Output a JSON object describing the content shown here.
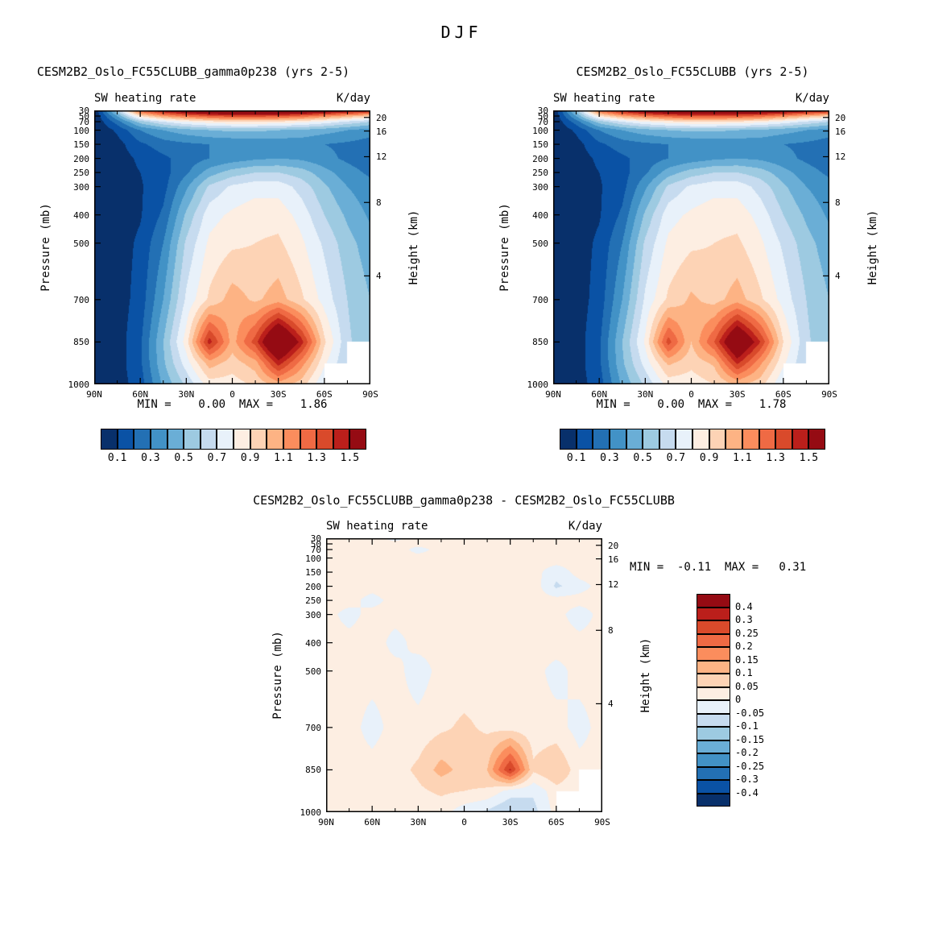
{
  "figure": {
    "title": "DJF"
  },
  "palette_blue_to_red": [
    "#08306b",
    "#0a52a5",
    "#2370b4",
    "#4292c6",
    "#6aaed6",
    "#9dcae1",
    "#c6dbef",
    "#e8f1fa",
    "#fdeee2",
    "#fdd3b5",
    "#fdb384",
    "#fb8d5d",
    "#ef6a44",
    "#d94a2b",
    "#bb1f1b",
    "#950b13"
  ],
  "chart_data": [
    {
      "type": "heatmap",
      "title": "CESM2B2_Oslo_FC55CLUBB_gamma0p238 (yrs 2-5)",
      "subtitle_left": "SW heating rate",
      "units": "K/day",
      "ylabel": "Pressure (mb)",
      "ylabel_right": "Height (km)",
      "stats_text": "MIN =    0.00  MAX =    1.86",
      "min": "0.00",
      "max": "1.86",
      "x_ticks": [
        {
          "label": "90N",
          "lat": 90
        },
        {
          "label": "60N",
          "lat": 60
        },
        {
          "label": "30N",
          "lat": 30
        },
        {
          "label": "0",
          "lat": 0
        },
        {
          "label": "30S",
          "lat": -30
        },
        {
          "label": "60S",
          "lat": -60
        },
        {
          "label": "90S",
          "lat": -90
        }
      ],
      "x_minor": [
        75,
        45,
        15,
        -15,
        -45,
        -75
      ],
      "pressure_ticks": [
        30,
        50,
        70,
        100,
        150,
        200,
        250,
        300,
        400,
        500,
        700,
        850,
        1000
      ],
      "height_ticks": [
        {
          "label": "20",
          "p": 55
        },
        {
          "label": "16",
          "p": 103
        },
        {
          "label": "12",
          "p": 194
        },
        {
          "label": "8",
          "p": 356
        },
        {
          "label": "4",
          "p": 616
        }
      ],
      "levels": [
        0.1,
        0.2,
        0.3,
        0.4,
        0.5,
        0.6,
        0.7,
        0.8,
        0.9,
        1.0,
        1.1,
        1.2,
        1.3,
        1.4,
        1.5
      ],
      "colorbar_labels": [
        "0.1",
        "0.3",
        "0.5",
        "0.7",
        "0.9",
        "1.1",
        "1.3",
        "1.5"
      ],
      "lats": [
        90,
        75,
        60,
        45,
        30,
        15,
        0,
        -15,
        -30,
        -45,
        -60,
        -75,
        -90
      ],
      "pressures": [
        30,
        50,
        70,
        100,
        150,
        200,
        250,
        300,
        400,
        500,
        700,
        850,
        925,
        1000
      ],
      "values": [
        [
          0.0,
          0.6,
          1.3,
          1.55,
          1.7,
          1.8,
          1.86,
          1.85,
          1.83,
          1.78,
          1.7,
          1.6,
          1.5
        ],
        [
          0.0,
          0.4,
          0.9,
          1.1,
          1.22,
          1.3,
          1.35,
          1.34,
          1.32,
          1.26,
          1.16,
          1.05,
          0.95
        ],
        [
          0.0,
          0.25,
          0.55,
          0.7,
          0.8,
          0.86,
          0.9,
          0.9,
          0.88,
          0.84,
          0.77,
          0.68,
          0.6
        ],
        [
          0.0,
          0.12,
          0.3,
          0.4,
          0.46,
          0.5,
          0.52,
          0.52,
          0.5,
          0.48,
          0.44,
          0.4,
          0.35
        ],
        [
          0.0,
          0.06,
          0.18,
          0.25,
          0.28,
          0.3,
          0.31,
          0.32,
          0.33,
          0.33,
          0.3,
          0.28,
          0.25
        ],
        [
          0.0,
          0.05,
          0.12,
          0.18,
          0.24,
          0.3,
          0.34,
          0.38,
          0.4,
          0.38,
          0.33,
          0.28,
          0.24
        ],
        [
          0.0,
          0.05,
          0.1,
          0.16,
          0.28,
          0.45,
          0.55,
          0.6,
          0.6,
          0.55,
          0.44,
          0.34,
          0.28
        ],
        [
          0.0,
          0.05,
          0.09,
          0.16,
          0.38,
          0.62,
          0.72,
          0.76,
          0.76,
          0.66,
          0.52,
          0.4,
          0.33
        ],
        [
          0.0,
          0.05,
          0.09,
          0.22,
          0.52,
          0.76,
          0.82,
          0.86,
          0.86,
          0.76,
          0.6,
          0.48,
          0.38
        ],
        [
          0.0,
          0.05,
          0.12,
          0.3,
          0.62,
          0.82,
          0.88,
          0.9,
          0.92,
          0.82,
          0.68,
          0.54,
          0.44
        ],
        [
          0.0,
          0.05,
          0.14,
          0.4,
          0.72,
          0.92,
          1.05,
          0.98,
          1.05,
          0.92,
          0.76,
          0.6,
          0.5
        ],
        [
          0.0,
          0.05,
          0.18,
          0.5,
          0.85,
          1.45,
          1.05,
          1.35,
          1.86,
          1.45,
          0.92,
          0.62,
          0.52
        ],
        [
          0.0,
          0.05,
          0.18,
          0.48,
          0.75,
          1.05,
          0.95,
          1.05,
          1.45,
          1.15,
          0.82,
          0.6,
          null
        ],
        [
          0.0,
          0.05,
          0.15,
          0.42,
          0.62,
          0.85,
          0.85,
          0.92,
          1.05,
          0.95,
          0.7,
          null,
          null
        ]
      ]
    },
    {
      "type": "heatmap",
      "title": "CESM2B2_Oslo_FC55CLUBB (yrs 2-5)",
      "subtitle_left": "SW heating rate",
      "units": "K/day",
      "ylabel": "Pressure (mb)",
      "ylabel_right": "Height (km)",
      "stats_text": "MIN =    0.00  MAX =    1.78",
      "min": "0.00",
      "max": "1.78",
      "x_ticks": [
        {
          "label": "90N",
          "lat": 90
        },
        {
          "label": "60N",
          "lat": 60
        },
        {
          "label": "30N",
          "lat": 30
        },
        {
          "label": "0",
          "lat": 0
        },
        {
          "label": "30S",
          "lat": -30
        },
        {
          "label": "60S",
          "lat": -60
        },
        {
          "label": "90S",
          "lat": -90
        }
      ],
      "x_minor": [
        75,
        45,
        15,
        -15,
        -45,
        -75
      ],
      "pressure_ticks": [
        30,
        50,
        70,
        100,
        150,
        200,
        250,
        300,
        400,
        500,
        700,
        850,
        1000
      ],
      "height_ticks": [
        {
          "label": "20",
          "p": 55
        },
        {
          "label": "16",
          "p": 103
        },
        {
          "label": "12",
          "p": 194
        },
        {
          "label": "8",
          "p": 356
        },
        {
          "label": "4",
          "p": 616
        }
      ],
      "levels": [
        0.1,
        0.2,
        0.3,
        0.4,
        0.5,
        0.6,
        0.7,
        0.8,
        0.9,
        1.0,
        1.1,
        1.2,
        1.3,
        1.4,
        1.5
      ],
      "colorbar_labels": [
        "0.1",
        "0.3",
        "0.5",
        "0.7",
        "0.9",
        "1.1",
        "1.3",
        "1.5"
      ],
      "lats": [
        90,
        75,
        60,
        45,
        30,
        15,
        0,
        -15,
        -30,
        -45,
        -60,
        -75,
        -90
      ],
      "pressures": [
        30,
        50,
        70,
        100,
        150,
        200,
        250,
        300,
        400,
        500,
        700,
        850,
        925,
        1000
      ],
      "values": [
        [
          0.0,
          0.55,
          1.25,
          1.52,
          1.68,
          1.76,
          1.78,
          1.78,
          1.77,
          1.74,
          1.68,
          1.58,
          1.48
        ],
        [
          0.0,
          0.4,
          0.88,
          1.08,
          1.2,
          1.28,
          1.33,
          1.32,
          1.3,
          1.25,
          1.15,
          1.04,
          0.94
        ],
        [
          0.0,
          0.25,
          0.55,
          0.7,
          0.8,
          0.86,
          0.9,
          0.9,
          0.88,
          0.84,
          0.77,
          0.68,
          0.6
        ],
        [
          0.0,
          0.12,
          0.3,
          0.4,
          0.46,
          0.5,
          0.52,
          0.52,
          0.5,
          0.48,
          0.44,
          0.4,
          0.35
        ],
        [
          0.0,
          0.06,
          0.18,
          0.25,
          0.28,
          0.3,
          0.31,
          0.32,
          0.33,
          0.33,
          0.3,
          0.28,
          0.25
        ],
        [
          0.0,
          0.05,
          0.12,
          0.18,
          0.24,
          0.3,
          0.34,
          0.38,
          0.4,
          0.38,
          0.33,
          0.28,
          0.24
        ],
        [
          0.0,
          0.05,
          0.1,
          0.16,
          0.28,
          0.45,
          0.55,
          0.6,
          0.6,
          0.55,
          0.44,
          0.34,
          0.28
        ],
        [
          0.0,
          0.05,
          0.09,
          0.16,
          0.38,
          0.62,
          0.72,
          0.76,
          0.76,
          0.66,
          0.52,
          0.4,
          0.33
        ],
        [
          0.0,
          0.05,
          0.09,
          0.22,
          0.52,
          0.76,
          0.82,
          0.86,
          0.86,
          0.76,
          0.6,
          0.48,
          0.38
        ],
        [
          0.0,
          0.05,
          0.12,
          0.3,
          0.62,
          0.82,
          0.88,
          0.9,
          0.92,
          0.82,
          0.68,
          0.54,
          0.44
        ],
        [
          0.0,
          0.05,
          0.14,
          0.4,
          0.72,
          0.92,
          1.02,
          0.96,
          1.05,
          0.92,
          0.76,
          0.6,
          0.5
        ],
        [
          0.0,
          0.05,
          0.18,
          0.5,
          0.82,
          1.35,
          1.0,
          1.3,
          1.78,
          1.4,
          0.9,
          0.62,
          0.52
        ],
        [
          0.0,
          0.05,
          0.18,
          0.48,
          0.74,
          1.02,
          0.93,
          1.02,
          1.42,
          1.12,
          0.82,
          0.6,
          null
        ],
        [
          0.0,
          0.05,
          0.15,
          0.42,
          0.62,
          0.84,
          0.84,
          0.9,
          1.02,
          0.94,
          0.7,
          null,
          null
        ]
      ]
    },
    {
      "type": "heatmap",
      "title": "CESM2B2_Oslo_FC55CLUBB_gamma0p238 - CESM2B2_Oslo_FC55CLUBB",
      "subtitle_left": "SW heating rate",
      "units": "K/day",
      "ylabel": "Pressure (mb)",
      "ylabel_right": "Height (km)",
      "stats_text": "MIN =  -0.11  MAX =   0.31",
      "min": "-0.11",
      "max": "0.31",
      "x_ticks": [
        {
          "label": "90N",
          "lat": 90
        },
        {
          "label": "60N",
          "lat": 60
        },
        {
          "label": "30N",
          "lat": 30
        },
        {
          "label": "0",
          "lat": 0
        },
        {
          "label": "30S",
          "lat": -30
        },
        {
          "label": "60S",
          "lat": -60
        },
        {
          "label": "90S",
          "lat": -90
        }
      ],
      "x_minor": [
        75,
        45,
        15,
        -15,
        -45,
        -75
      ],
      "pressure_ticks": [
        30,
        50,
        70,
        100,
        150,
        200,
        250,
        300,
        400,
        500,
        700,
        850,
        1000
      ],
      "height_ticks": [
        {
          "label": "20",
          "p": 55
        },
        {
          "label": "16",
          "p": 103
        },
        {
          "label": "12",
          "p": 194
        },
        {
          "label": "8",
          "p": 356
        },
        {
          "label": "4",
          "p": 616
        }
      ],
      "levels": [
        -0.4,
        -0.3,
        -0.25,
        -0.2,
        -0.15,
        -0.1,
        -0.05,
        0,
        0.05,
        0.1,
        0.15,
        0.2,
        0.25,
        0.3,
        0.4
      ],
      "colorbar_labels": [
        "0.4",
        "0.3",
        "0.25",
        "0.2",
        "0.15",
        "0.1",
        "0.05",
        "0",
        "-0.05",
        "-0.1",
        "-0.15",
        "-0.2",
        "-0.25",
        "-0.3",
        "-0.4"
      ],
      "lats": [
        90,
        75,
        60,
        45,
        30,
        15,
        0,
        -15,
        -30,
        -45,
        -60,
        -75,
        -90
      ],
      "pressures": [
        30,
        50,
        70,
        100,
        150,
        200,
        250,
        300,
        400,
        500,
        700,
        850,
        925,
        1000
      ],
      "values": [
        [
          0.02,
          0.03,
          0.02,
          -0.02,
          0.03,
          0.02,
          0.03,
          0.02,
          0.04,
          0.02,
          0.03,
          0.02,
          0.02
        ],
        [
          0.02,
          0.02,
          0.03,
          0.02,
          0.02,
          0.03,
          0.02,
          0.03,
          0.03,
          0.02,
          0.02,
          0.03,
          0.02
        ],
        [
          0.02,
          0.03,
          0.02,
          0.03,
          -0.02,
          0.02,
          0.03,
          0.02,
          0.02,
          0.03,
          0.02,
          0.02,
          0.02
        ],
        [
          0.02,
          0.02,
          0.03,
          0.02,
          0.02,
          0.03,
          0.02,
          0.03,
          0.02,
          0.02,
          0.03,
          0.02,
          0.02
        ],
        [
          0.02,
          0.03,
          0.02,
          0.02,
          0.03,
          0.02,
          0.03,
          0.02,
          0.03,
          0.02,
          -0.03,
          0.02,
          0.02
        ],
        [
          0.02,
          0.02,
          0.02,
          0.03,
          0.02,
          0.02,
          0.02,
          0.03,
          0.02,
          0.03,
          -0.06,
          -0.02,
          0.02
        ],
        [
          0.02,
          0.02,
          -0.02,
          0.02,
          0.03,
          0.02,
          0.03,
          0.02,
          0.03,
          0.02,
          0.02,
          0.02,
          0.02
        ],
        [
          0.02,
          -0.02,
          0.02,
          0.02,
          0.02,
          0.03,
          0.02,
          0.03,
          0.02,
          0.03,
          0.02,
          -0.03,
          0.02
        ],
        [
          0.02,
          0.02,
          0.03,
          -0.02,
          0.02,
          0.02,
          0.03,
          0.02,
          0.03,
          0.02,
          0.03,
          0.02,
          0.02
        ],
        [
          0.02,
          0.02,
          0.02,
          0.02,
          -0.03,
          0.02,
          0.02,
          0.03,
          0.02,
          0.02,
          -0.02,
          0.02,
          0.02
        ],
        [
          0.02,
          0.02,
          -0.02,
          0.02,
          0.02,
          0.04,
          0.06,
          0.04,
          0.03,
          0.02,
          0.02,
          -0.02,
          0.02
        ],
        [
          0.02,
          0.02,
          0.02,
          0.03,
          0.06,
          0.12,
          0.08,
          0.1,
          0.31,
          0.06,
          0.1,
          0.02,
          0.02
        ],
        [
          0.02,
          0.02,
          0.02,
          0.02,
          0.04,
          0.06,
          0.05,
          0.04,
          -0.02,
          -0.04,
          0.03,
          0.02,
          null
        ],
        [
          0.02,
          0.02,
          0.02,
          0.02,
          0.02,
          0.02,
          -0.03,
          -0.06,
          -0.11,
          -0.07,
          0.02,
          null,
          null
        ]
      ]
    }
  ]
}
